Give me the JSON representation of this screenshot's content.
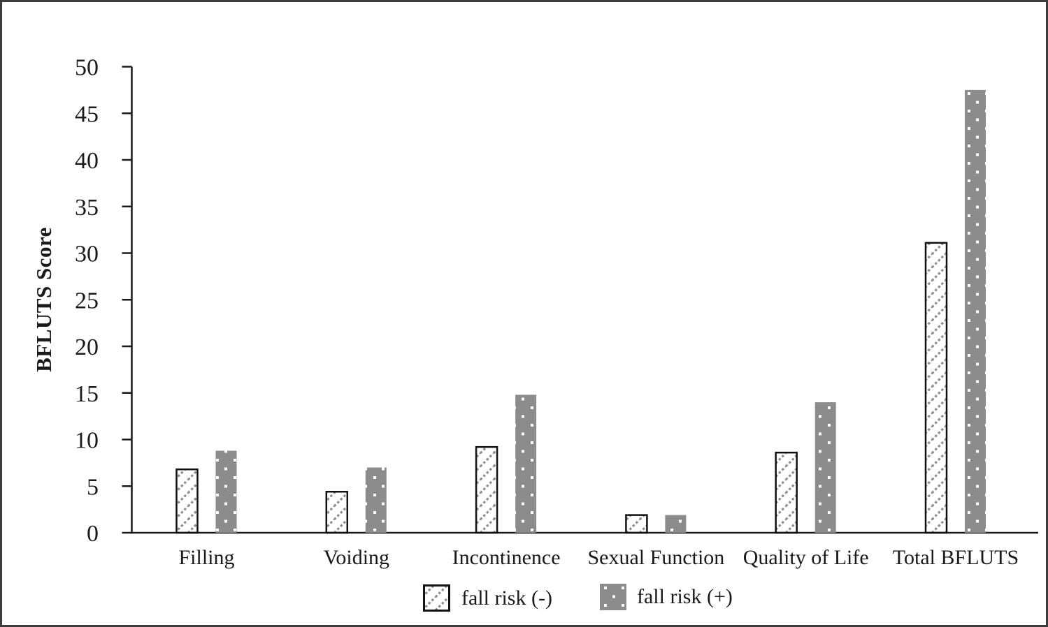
{
  "chart_data": {
    "type": "bar",
    "title": "",
    "xlabel": "",
    "ylabel": "BFLUTS Score",
    "ylim": [
      0,
      50
    ],
    "ytick_step": 5,
    "yticks": [
      0,
      5,
      10,
      15,
      20,
      25,
      30,
      35,
      40,
      45,
      50
    ],
    "categories": [
      "Filling",
      "Voiding",
      "Incontinence",
      "Sexual Function",
      "Quality of Life",
      "Total BFLUTS"
    ],
    "series": [
      {
        "name": "fall risk (-)",
        "style": "white-diagonal-hatch-black-border",
        "values": [
          6.8,
          4.4,
          9.2,
          1.9,
          8.6,
          31.1
        ]
      },
      {
        "name": "fall risk (+)",
        "style": "gray-white-dots",
        "values": [
          8.8,
          7.0,
          14.8,
          1.9,
          14.0,
          47.5
        ]
      }
    ],
    "grid": false,
    "legend_position": "bottom-center"
  },
  "colors": {
    "axis": "#1a1a1a",
    "text": "#1a1a1a",
    "bar_gray": "#8c8c8c",
    "hatch_line": "#8f8f8f",
    "dot_white": "#ffffff",
    "bar_border": "#111111",
    "figure_border": "#3c3c3c"
  }
}
